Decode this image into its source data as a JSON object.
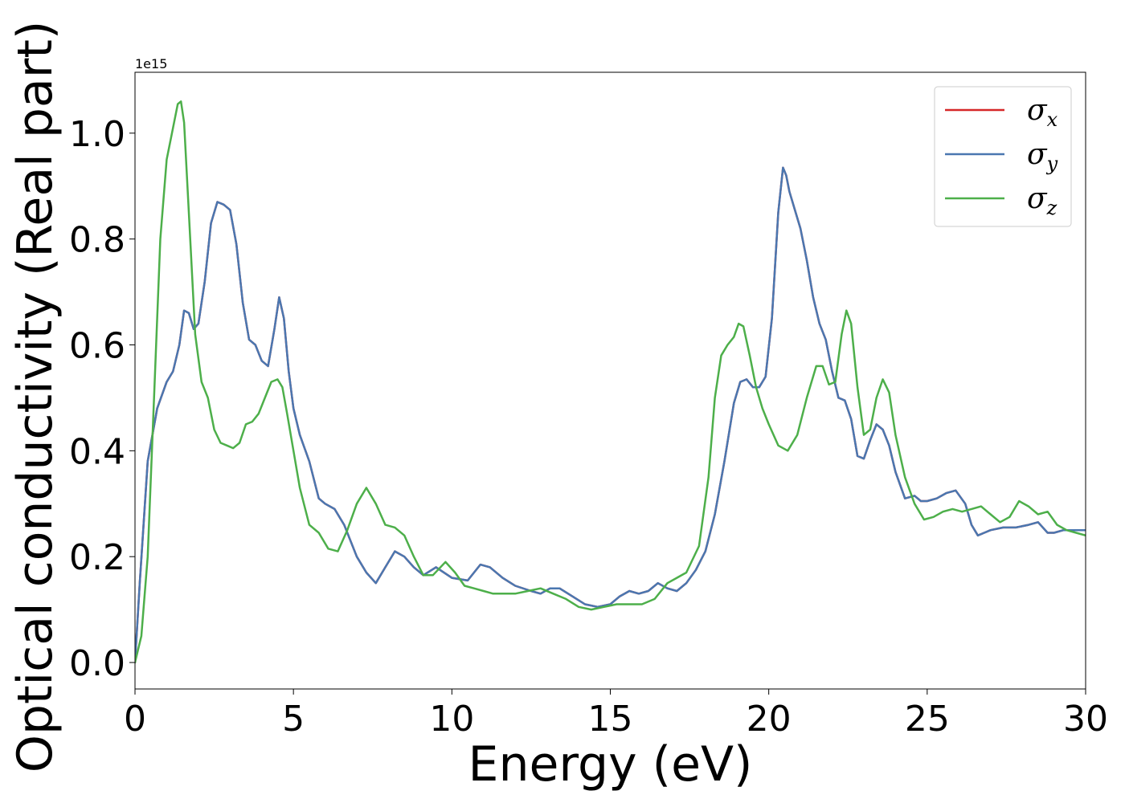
{
  "chart_data": {
    "type": "line",
    "xlabel": "Energy (eV)",
    "ylabel": "Optical conductivity (Real part)",
    "y_offset_text": "1e15",
    "xlim": [
      0,
      30
    ],
    "ylim": [
      -0.05,
      1.115
    ],
    "x_ticks": [
      0,
      5,
      10,
      15,
      20,
      25,
      30
    ],
    "x_tick_labels": [
      "0",
      "5",
      "10",
      "15",
      "20",
      "25",
      "30"
    ],
    "y_ticks": [
      0.0,
      0.2,
      0.4,
      0.6,
      0.8,
      1.0
    ],
    "y_tick_labels": [
      "0.0",
      "0.2",
      "0.4",
      "0.6",
      "0.8",
      "1.0"
    ],
    "grid": false,
    "legend_position": "top-right",
    "series": [
      {
        "name": "σx",
        "symbol": "σ",
        "subscript": "x",
        "color": "#d62728",
        "x": [
          0,
          0.15,
          0.4,
          0.7,
          1.0,
          1.2,
          1.4,
          1.55,
          1.7,
          1.85,
          2.0,
          2.2,
          2.4,
          2.6,
          2.8,
          3.0,
          3.2,
          3.4,
          3.6,
          3.8,
          4.0,
          4.2,
          4.4,
          4.55,
          4.7,
          4.85,
          5.0,
          5.2,
          5.5,
          5.8,
          6.0,
          6.3,
          6.6,
          7.0,
          7.3,
          7.6,
          7.9,
          8.2,
          8.5,
          8.8,
          9.1,
          9.5,
          10.0,
          10.5,
          10.9,
          11.2,
          11.6,
          12.0,
          12.5,
          12.8,
          13.1,
          13.4,
          13.8,
          14.2,
          14.6,
          15.0,
          15.3,
          15.6,
          15.9,
          16.2,
          16.5,
          16.8,
          17.1,
          17.4,
          17.7,
          18.0,
          18.3,
          18.6,
          18.9,
          19.1,
          19.3,
          19.5,
          19.7,
          19.9,
          20.1,
          20.3,
          20.45,
          20.55,
          20.65,
          20.8,
          21.0,
          21.2,
          21.4,
          21.6,
          21.8,
          22.0,
          22.2,
          22.4,
          22.6,
          22.8,
          23.0,
          23.2,
          23.4,
          23.6,
          23.8,
          24.0,
          24.3,
          24.6,
          24.8,
          25.0,
          25.3,
          25.6,
          25.9,
          26.2,
          26.4,
          26.6,
          26.8,
          27.0,
          27.4,
          27.8,
          28.2,
          28.5,
          28.8,
          29.0,
          29.3,
          29.6,
          30.0
        ],
        "y": [
          0.0,
          0.15,
          0.38,
          0.48,
          0.53,
          0.55,
          0.6,
          0.665,
          0.66,
          0.63,
          0.64,
          0.72,
          0.83,
          0.87,
          0.865,
          0.855,
          0.79,
          0.68,
          0.61,
          0.6,
          0.57,
          0.56,
          0.63,
          0.69,
          0.65,
          0.55,
          0.48,
          0.43,
          0.38,
          0.31,
          0.3,
          0.29,
          0.26,
          0.2,
          0.17,
          0.15,
          0.18,
          0.21,
          0.2,
          0.18,
          0.165,
          0.18,
          0.16,
          0.155,
          0.185,
          0.18,
          0.16,
          0.145,
          0.135,
          0.13,
          0.14,
          0.14,
          0.125,
          0.11,
          0.105,
          0.11,
          0.125,
          0.135,
          0.13,
          0.135,
          0.15,
          0.14,
          0.135,
          0.15,
          0.175,
          0.21,
          0.28,
          0.38,
          0.49,
          0.53,
          0.535,
          0.52,
          0.52,
          0.54,
          0.65,
          0.85,
          0.935,
          0.92,
          0.89,
          0.86,
          0.82,
          0.76,
          0.69,
          0.64,
          0.61,
          0.55,
          0.5,
          0.495,
          0.46,
          0.39,
          0.385,
          0.42,
          0.45,
          0.44,
          0.41,
          0.36,
          0.31,
          0.315,
          0.305,
          0.305,
          0.31,
          0.32,
          0.325,
          0.3,
          0.26,
          0.24,
          0.245,
          0.25,
          0.255,
          0.255,
          0.26,
          0.265,
          0.245,
          0.245,
          0.25,
          0.25,
          0.25
        ]
      },
      {
        "name": "σy",
        "symbol": "σ",
        "subscript": "y",
        "color": "#4a77b0",
        "x": [
          0,
          0.15,
          0.4,
          0.7,
          1.0,
          1.2,
          1.4,
          1.55,
          1.7,
          1.85,
          2.0,
          2.2,
          2.4,
          2.6,
          2.8,
          3.0,
          3.2,
          3.4,
          3.6,
          3.8,
          4.0,
          4.2,
          4.4,
          4.55,
          4.7,
          4.85,
          5.0,
          5.2,
          5.5,
          5.8,
          6.0,
          6.3,
          6.6,
          7.0,
          7.3,
          7.6,
          7.9,
          8.2,
          8.5,
          8.8,
          9.1,
          9.5,
          10.0,
          10.5,
          10.9,
          11.2,
          11.6,
          12.0,
          12.5,
          12.8,
          13.1,
          13.4,
          13.8,
          14.2,
          14.6,
          15.0,
          15.3,
          15.6,
          15.9,
          16.2,
          16.5,
          16.8,
          17.1,
          17.4,
          17.7,
          18.0,
          18.3,
          18.6,
          18.9,
          19.1,
          19.3,
          19.5,
          19.7,
          19.9,
          20.1,
          20.3,
          20.45,
          20.55,
          20.65,
          20.8,
          21.0,
          21.2,
          21.4,
          21.6,
          21.8,
          22.0,
          22.2,
          22.4,
          22.6,
          22.8,
          23.0,
          23.2,
          23.4,
          23.6,
          23.8,
          24.0,
          24.3,
          24.6,
          24.8,
          25.0,
          25.3,
          25.6,
          25.9,
          26.2,
          26.4,
          26.6,
          26.8,
          27.0,
          27.4,
          27.8,
          28.2,
          28.5,
          28.8,
          29.0,
          29.3,
          29.6,
          30.0
        ],
        "y": [
          0.0,
          0.15,
          0.38,
          0.48,
          0.53,
          0.55,
          0.6,
          0.665,
          0.66,
          0.63,
          0.64,
          0.72,
          0.83,
          0.87,
          0.865,
          0.855,
          0.79,
          0.68,
          0.61,
          0.6,
          0.57,
          0.56,
          0.63,
          0.69,
          0.65,
          0.55,
          0.48,
          0.43,
          0.38,
          0.31,
          0.3,
          0.29,
          0.26,
          0.2,
          0.17,
          0.15,
          0.18,
          0.21,
          0.2,
          0.18,
          0.165,
          0.18,
          0.16,
          0.155,
          0.185,
          0.18,
          0.16,
          0.145,
          0.135,
          0.13,
          0.14,
          0.14,
          0.125,
          0.11,
          0.105,
          0.11,
          0.125,
          0.135,
          0.13,
          0.135,
          0.15,
          0.14,
          0.135,
          0.15,
          0.175,
          0.21,
          0.28,
          0.38,
          0.49,
          0.53,
          0.535,
          0.52,
          0.52,
          0.54,
          0.65,
          0.85,
          0.935,
          0.92,
          0.89,
          0.86,
          0.82,
          0.76,
          0.69,
          0.64,
          0.61,
          0.55,
          0.5,
          0.495,
          0.46,
          0.39,
          0.385,
          0.42,
          0.45,
          0.44,
          0.41,
          0.36,
          0.31,
          0.315,
          0.305,
          0.305,
          0.31,
          0.32,
          0.325,
          0.3,
          0.26,
          0.24,
          0.245,
          0.25,
          0.255,
          0.255,
          0.26,
          0.265,
          0.245,
          0.245,
          0.25,
          0.25,
          0.25
        ]
      },
      {
        "name": "σz",
        "symbol": "σ",
        "subscript": "z",
        "color": "#4daf4a",
        "x": [
          0,
          0.2,
          0.4,
          0.6,
          0.8,
          1.0,
          1.2,
          1.35,
          1.45,
          1.55,
          1.7,
          1.9,
          2.1,
          2.3,
          2.5,
          2.7,
          2.9,
          3.1,
          3.3,
          3.5,
          3.7,
          3.9,
          4.1,
          4.3,
          4.5,
          4.65,
          4.8,
          5.0,
          5.2,
          5.5,
          5.8,
          6.1,
          6.4,
          6.7,
          7.0,
          7.3,
          7.6,
          7.9,
          8.2,
          8.5,
          8.8,
          9.1,
          9.4,
          9.8,
          10.1,
          10.4,
          10.7,
          11.0,
          11.3,
          11.6,
          12.0,
          12.4,
          12.8,
          13.2,
          13.6,
          14.0,
          14.4,
          14.8,
          15.2,
          15.6,
          16.0,
          16.4,
          16.8,
          17.1,
          17.4,
          17.8,
          18.1,
          18.3,
          18.5,
          18.7,
          18.9,
          19.05,
          19.2,
          19.4,
          19.6,
          19.8,
          20.0,
          20.3,
          20.6,
          20.9,
          21.2,
          21.5,
          21.7,
          21.9,
          22.1,
          22.3,
          22.45,
          22.6,
          22.8,
          23.0,
          23.2,
          23.4,
          23.6,
          23.8,
          24.0,
          24.3,
          24.6,
          24.9,
          25.2,
          25.5,
          25.8,
          26.1,
          26.4,
          26.7,
          27.0,
          27.3,
          27.6,
          27.9,
          28.2,
          28.5,
          28.8,
          29.1,
          29.4,
          29.7,
          30.0
        ],
        "y": [
          0.0,
          0.05,
          0.2,
          0.5,
          0.8,
          0.95,
          1.01,
          1.055,
          1.06,
          1.02,
          0.85,
          0.62,
          0.53,
          0.5,
          0.44,
          0.415,
          0.41,
          0.405,
          0.415,
          0.45,
          0.455,
          0.47,
          0.5,
          0.53,
          0.535,
          0.52,
          0.47,
          0.4,
          0.33,
          0.26,
          0.245,
          0.215,
          0.21,
          0.25,
          0.3,
          0.33,
          0.3,
          0.26,
          0.255,
          0.24,
          0.2,
          0.165,
          0.165,
          0.19,
          0.17,
          0.145,
          0.14,
          0.135,
          0.13,
          0.13,
          0.13,
          0.135,
          0.14,
          0.13,
          0.12,
          0.105,
          0.1,
          0.105,
          0.11,
          0.11,
          0.11,
          0.12,
          0.15,
          0.16,
          0.17,
          0.22,
          0.35,
          0.5,
          0.58,
          0.6,
          0.615,
          0.64,
          0.635,
          0.58,
          0.52,
          0.48,
          0.45,
          0.41,
          0.4,
          0.43,
          0.5,
          0.56,
          0.56,
          0.525,
          0.53,
          0.62,
          0.665,
          0.64,
          0.52,
          0.43,
          0.44,
          0.5,
          0.535,
          0.51,
          0.43,
          0.35,
          0.3,
          0.27,
          0.275,
          0.285,
          0.29,
          0.285,
          0.29,
          0.295,
          0.28,
          0.265,
          0.275,
          0.305,
          0.295,
          0.28,
          0.285,
          0.26,
          0.25,
          0.245,
          0.24
        ]
      }
    ]
  }
}
